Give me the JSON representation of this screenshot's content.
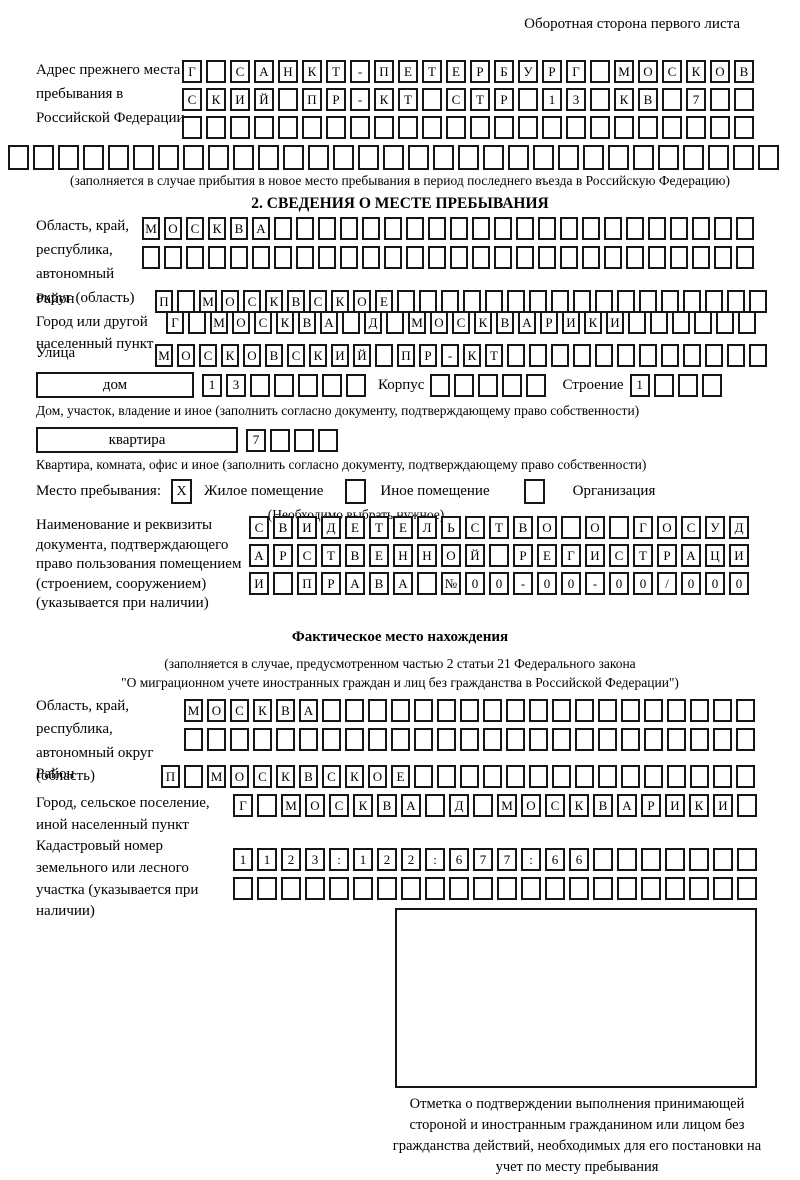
{
  "page": {
    "corner_note": "Оборотная сторона первого листа"
  },
  "prev_address": {
    "label": "Адрес прежнего места пребывания в Российской Федерации",
    "row1": "Г САНКТ-ПЕТЕРБУРГ МОСКОВ",
    "row2": "СКИЙ ПР-КТ СТР 13 КВ 7",
    "row3": "",
    "row4": "",
    "note": "(заполняется в случае прибытия в новое место пребывания в период последнего въезда в Российскую Федерацию)"
  },
  "section2": {
    "heading": "2. СВЕДЕНИЯ О МЕСТЕ ПРЕБЫВАНИЯ",
    "oblast": {
      "label": "Область, край, республика, автономный округ (область)",
      "row1": "МОСКВА",
      "row2": ""
    },
    "raion": {
      "label": "Район",
      "row": "П МОСКВСКОЕ"
    },
    "gorod": {
      "label": "Город или другой населенный пункт",
      "row": "Г МОСКВА Д МОСКВАРИКИ"
    },
    "ulitsa": {
      "label": "Улица",
      "row": "МОСКОВСКИЙ ПР-КТ"
    },
    "dom": {
      "box_label": "дом",
      "cells": "13",
      "korpus_label": "Корпус",
      "korpus_cells": "",
      "stroenie_label": "Строение",
      "stroenie_cells": "1",
      "note": "Дом, участок, владение и иное (заполнить согласно документу, подтверждающему право собственности)"
    },
    "kvartira": {
      "box_label": "квартира",
      "cells": "7",
      "note": "Квартира, комната, офис и иное (заполнить согласно документу, подтверждающему право собственности)"
    },
    "mesto": {
      "label": "Место пребывания:",
      "opt1_mark": "X",
      "opt1": "Жилое помещение",
      "opt2_mark": "",
      "opt2": "Иное помещение",
      "opt3_mark": "",
      "opt3": "Организация",
      "note": "(Необходимо выбрать нужное)"
    },
    "doc": {
      "label": "Наименование и реквизиты документа, подтверждающего право пользования помещением (строением, сооружением) (указывается при наличии)",
      "row1": "СВИДЕТЕЛЬСТВО О ГОСУД",
      "row2": "АРСТВЕННОЙ РЕГИСТРАЦИ",
      "row3": "И ПРАВА №00-00-00/000"
    }
  },
  "fact": {
    "heading": "Фактическое место нахождения",
    "note1": "(заполняется в случае, предусмотренном частью 2 статьи 21 Федерального закона",
    "note2": "\"О миграционном учете иностранных граждан и лиц без гражданства в Российской Федерации\")",
    "oblast": {
      "label": "Область, край, республика, автономный округ (область)",
      "row1": "МОСКВА",
      "row2": ""
    },
    "raion": {
      "label": "Район",
      "row": "П МОСКВСКОЕ"
    },
    "gorod": {
      "label": "Город, сельское поселение, иной населенный пункт",
      "row": "Г МОСКВА Д МОСКВАРИКИ"
    },
    "kadastr": {
      "label": "Кадастровый номер земельного или лесного участка (указывается при наличии)",
      "row1": "1123:122:677:66",
      "row2": ""
    }
  },
  "stamp": {
    "caption": "Отметка о подтверждении выполнения принимающей стороной и иностранным гражданином или лицом без гражданства действий, необходимых для его постановки на учет по месту пребывания"
  }
}
